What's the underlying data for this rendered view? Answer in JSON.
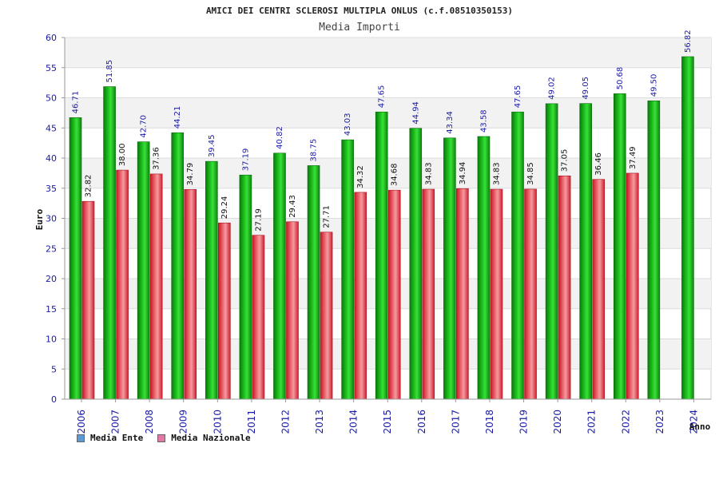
{
  "chart_data": {
    "type": "bar",
    "title": "AMICI DEI CENTRI SCLEROSI MULTIPLA ONLUS (c.f.08510350153)",
    "subtitle": "Media Importi",
    "xlabel": "Anno",
    "ylabel": "Euro",
    "ylim": [
      0,
      60
    ],
    "yticks": [
      0,
      5,
      10,
      15,
      20,
      25,
      30,
      35,
      40,
      45,
      50,
      55,
      60
    ],
    "categories": [
      "2006",
      "2007",
      "2008",
      "2009",
      "2010",
      "2011",
      "2012",
      "2013",
      "2014",
      "2015",
      "2016",
      "2017",
      "2018",
      "2019",
      "2020",
      "2021",
      "2022",
      "2023",
      "2024"
    ],
    "series": [
      {
        "name": "Media Ente",
        "color": "#1aa61a",
        "values": [
          46.71,
          51.85,
          42.7,
          44.21,
          39.45,
          37.19,
          40.82,
          38.75,
          43.03,
          47.65,
          44.94,
          43.34,
          43.58,
          47.65,
          49.02,
          49.05,
          50.68,
          49.5,
          56.82
        ],
        "labels": [
          "46.71",
          "51.85",
          "42.70",
          "44.21",
          "39.45",
          "37.19",
          "40.82",
          "38.75",
          "43.03",
          "47.65",
          "44.94",
          "43.34",
          "43.58",
          "47.65",
          "49.02",
          "49.05",
          "50.68",
          "49.50",
          "56.82"
        ]
      },
      {
        "name": "Media Nazionale",
        "color": "#e0303a",
        "values": [
          32.82,
          38.0,
          37.36,
          34.79,
          29.24,
          27.19,
          29.43,
          27.71,
          34.32,
          34.68,
          34.83,
          34.94,
          34.83,
          34.85,
          37.05,
          36.46,
          37.49,
          null,
          null
        ],
        "labels": [
          "32.82",
          "38.00",
          "37.36",
          "34.79",
          "29.24",
          "27.19",
          "29.43",
          "27.71",
          "34.32",
          "34.68",
          "34.83",
          "34.94",
          "34.83",
          "34.85",
          "37.05",
          "36.46",
          "37.49",
          null,
          null
        ]
      }
    ],
    "legend": [
      {
        "label": "Media Ente",
        "color": "#5b9bd5"
      },
      {
        "label": "Media Nazionale",
        "color": "#e377a8"
      }
    ],
    "grid": true,
    "legend_position": "bottom-left"
  }
}
